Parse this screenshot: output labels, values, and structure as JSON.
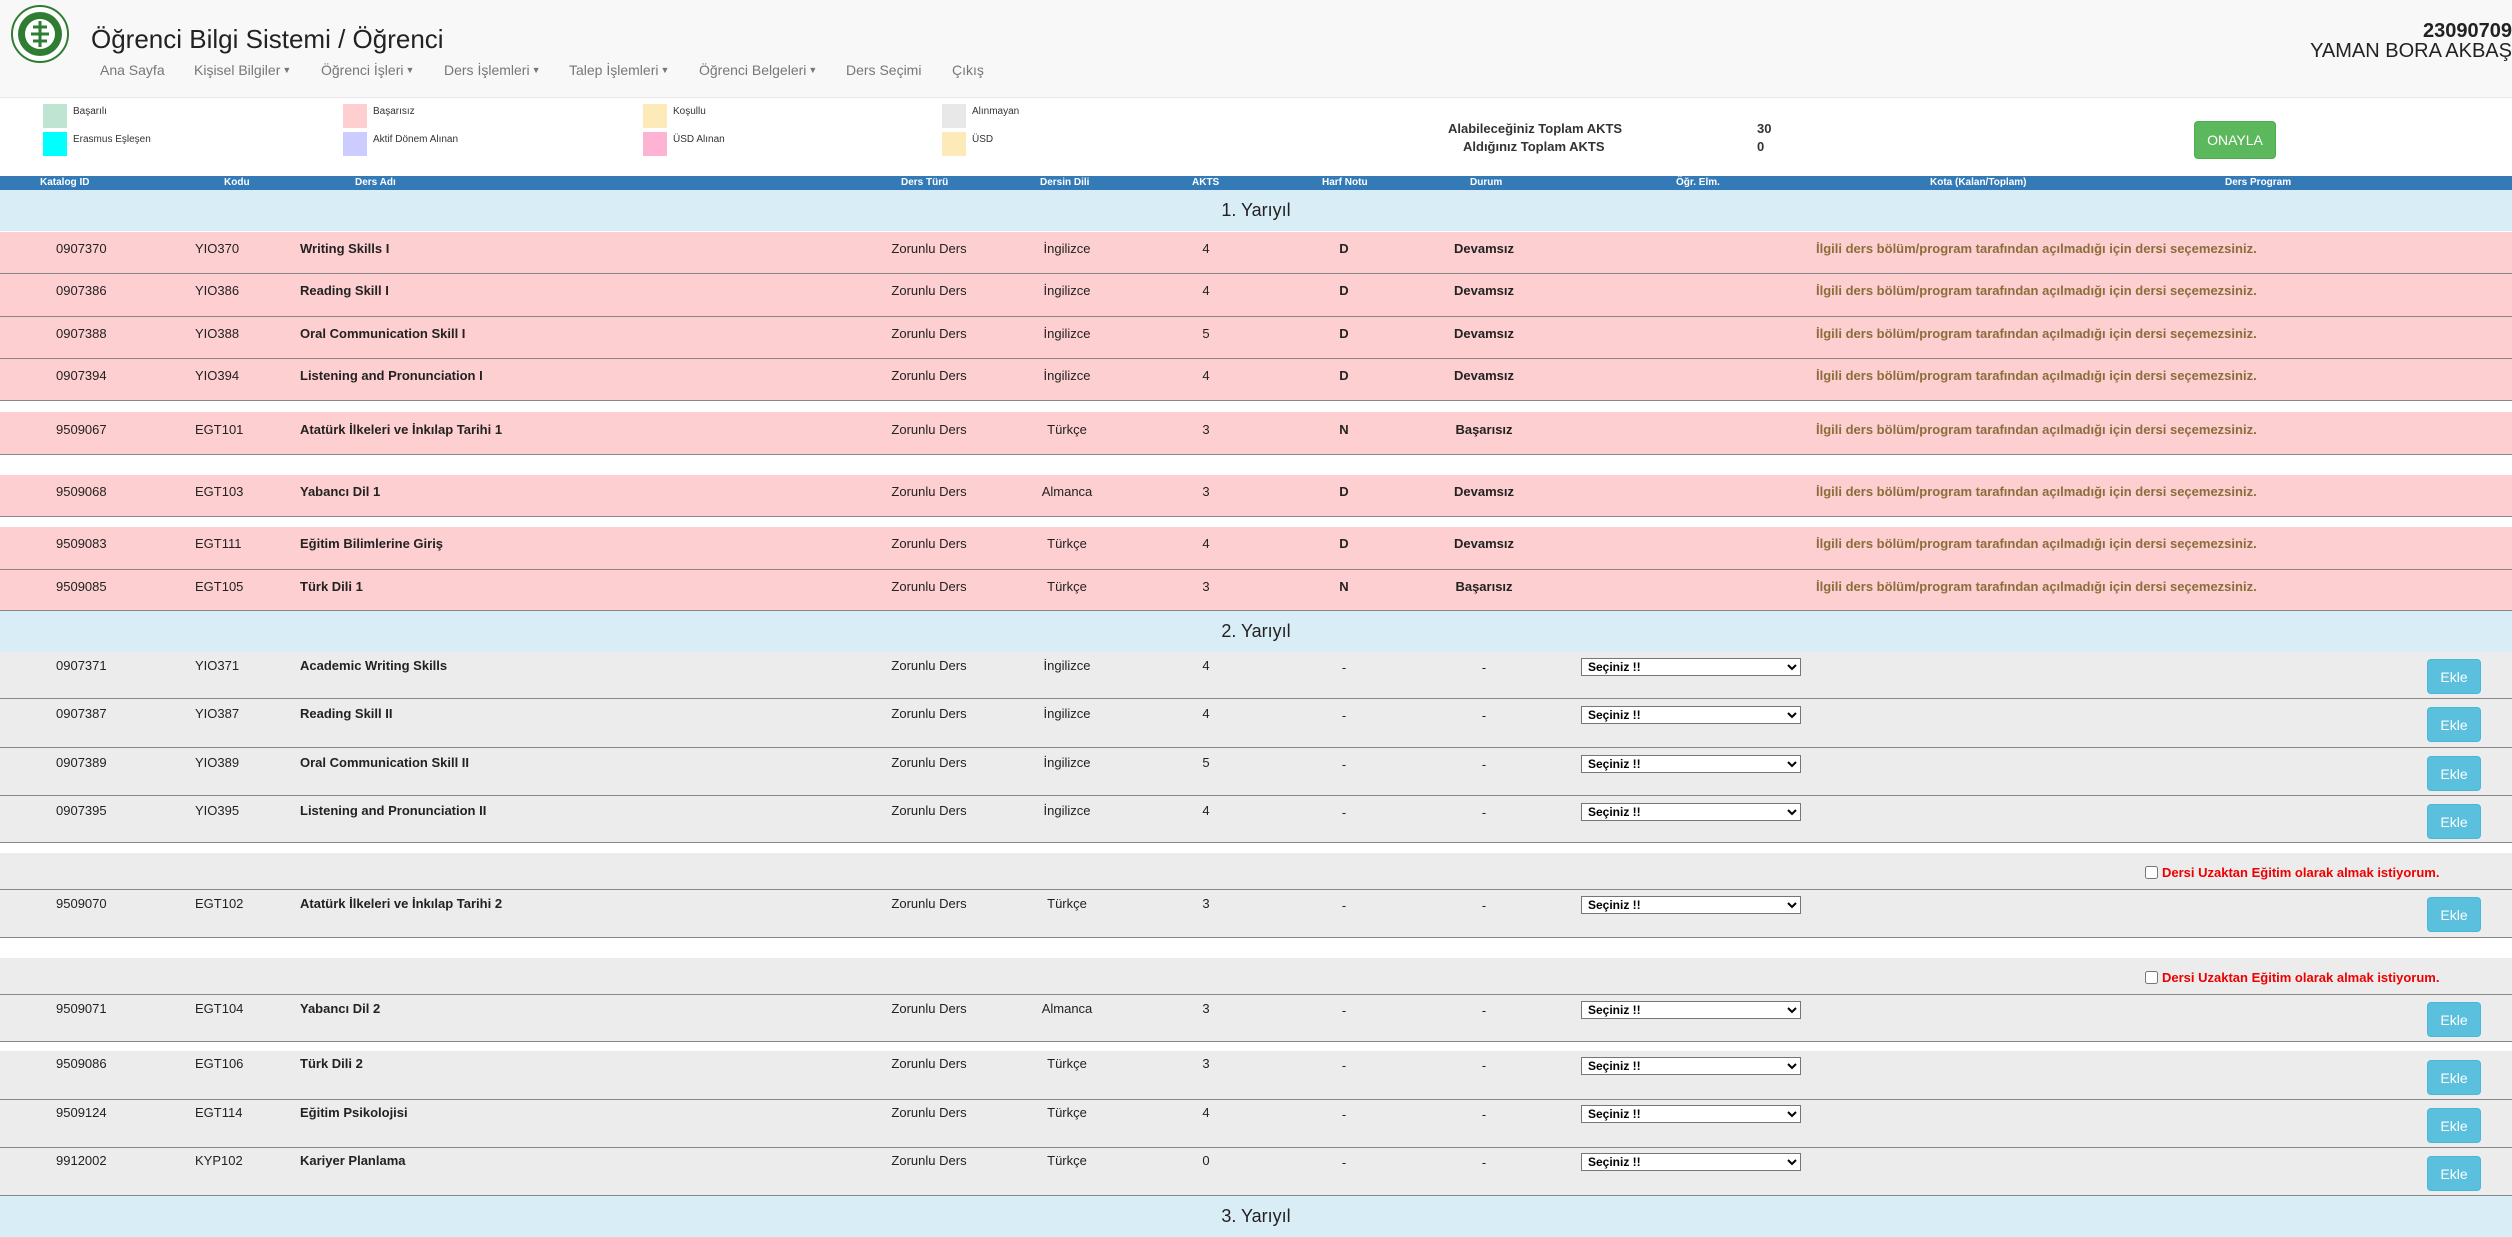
{
  "header": {
    "title": "Öğrenci Bilgi Sistemi / Öğrenci",
    "student_no": "23090709",
    "student_name": "YAMAN BORA AKBAŞ",
    "nav": [
      {
        "label": "Ana Sayfa",
        "dropdown": false
      },
      {
        "label": "Kişisel Bilgiler",
        "dropdown": true
      },
      {
        "label": "Öğrenci İşleri",
        "dropdown": true
      },
      {
        "label": "Ders İşlemleri",
        "dropdown": true
      },
      {
        "label": "Talep İşlemleri",
        "dropdown": true
      },
      {
        "label": "Öğrenci Belgeleri",
        "dropdown": true
      },
      {
        "label": "Ders Seçimi",
        "dropdown": false
      },
      {
        "label": "Çıkış",
        "dropdown": false
      }
    ]
  },
  "legend": [
    {
      "label": "Başarılı",
      "color": "#bfe4d2"
    },
    {
      "label": "Başarısız",
      "color": "#fecfd0"
    },
    {
      "label": "Koşullu",
      "color": "#fcebb8"
    },
    {
      "label": "Alınmayan",
      "color": "#e8e8e8"
    },
    {
      "label": "Erasmus Eşleşen",
      "color": "#00ffff"
    },
    {
      "label": "Aktif Dönem Alınan",
      "color": "#ccccff"
    },
    {
      "label": "ÜSD Alınan",
      "color": "#ffb3d4"
    },
    {
      "label": "ÜSD",
      "color": "#fcebb8"
    }
  ],
  "akts": {
    "max_label": "Alabileceğiniz Toplam AKTS",
    "max_value": "30",
    "taken_label": "Aldığınız Toplam AKTS",
    "taken_value": "0"
  },
  "approve_label": "ONAYLA",
  "columns": [
    "Katalog ID",
    "Kodu",
    "Ders Adı",
    "Ders Türü",
    "Dersin Dili",
    "AKTS",
    "Harf Notu",
    "Durum",
    "Öğr. Elm.",
    "Kota (Kalan/Toplam)",
    "Ders Program"
  ],
  "semesters": [
    "1. Yarıyıl",
    "2. Yarıyıl",
    "3. Yarıyıl"
  ],
  "fail_message": "İlgili ders bölüm/program tarafından açılmadığı için dersi seçemezsiniz.",
  "select_placeholder": "Seçiniz !!",
  "add_label": "Ekle",
  "distance_label": "Dersi Uzaktan Eğitim olarak almak istiyorum.",
  "semester1": [
    {
      "id": "0907370",
      "code": "YIO370",
      "name": "Writing Skills I",
      "type": "Zorunlu Ders",
      "lang": "İngilizce",
      "akts": "4",
      "grade": "D",
      "status": "Devamsız"
    },
    {
      "id": "0907386",
      "code": "YIO386",
      "name": "Reading Skill I",
      "type": "Zorunlu Ders",
      "lang": "İngilizce",
      "akts": "4",
      "grade": "D",
      "status": "Devamsız"
    },
    {
      "id": "0907388",
      "code": "YIO388",
      "name": "Oral Communication Skill I",
      "type": "Zorunlu Ders",
      "lang": "İngilizce",
      "akts": "5",
      "grade": "D",
      "status": "Devamsız"
    },
    {
      "id": "0907394",
      "code": "YIO394",
      "name": "Listening and Pronunciation I",
      "type": "Zorunlu Ders",
      "lang": "İngilizce",
      "akts": "4",
      "grade": "D",
      "status": "Devamsız"
    },
    {
      "id": "9509067",
      "code": "EGT101",
      "name": "Atatürk İlkeleri ve İnkılap Tarihi 1",
      "type": "Zorunlu Ders",
      "lang": "Türkçe",
      "akts": "3",
      "grade": "N",
      "status": "Başarısız"
    },
    {
      "id": "9509068",
      "code": "EGT103",
      "name": "Yabancı Dil 1",
      "type": "Zorunlu Ders",
      "lang": "Almanca",
      "akts": "3",
      "grade": "D",
      "status": "Devamsız"
    },
    {
      "id": "9509083",
      "code": "EGT111",
      "name": "Eğitim Bilimlerine Giriş",
      "type": "Zorunlu Ders",
      "lang": "Türkçe",
      "akts": "4",
      "grade": "D",
      "status": "Devamsız"
    },
    {
      "id": "9509085",
      "code": "EGT105",
      "name": "Türk Dili 1",
      "type": "Zorunlu Ders",
      "lang": "Türkçe",
      "akts": "3",
      "grade": "N",
      "status": "Başarısız"
    }
  ],
  "semester2": [
    {
      "id": "0907371",
      "code": "YIO371",
      "name": "Academic Writing Skills",
      "type": "Zorunlu Ders",
      "lang": "İngilizce",
      "akts": "4",
      "grade": "-",
      "status": "-"
    },
    {
      "id": "0907387",
      "code": "YIO387",
      "name": "Reading Skill II",
      "type": "Zorunlu Ders",
      "lang": "İngilizce",
      "akts": "4",
      "grade": "-",
      "status": "-"
    },
    {
      "id": "0907389",
      "code": "YIO389",
      "name": "Oral Communication Skill II",
      "type": "Zorunlu Ders",
      "lang": "İngilizce",
      "akts": "5",
      "grade": "-",
      "status": "-"
    },
    {
      "id": "0907395",
      "code": "YIO395",
      "name": "Listening and Pronunciation II",
      "type": "Zorunlu Ders",
      "lang": "İngilizce",
      "akts": "4",
      "grade": "-",
      "status": "-"
    },
    {
      "id": "9509070",
      "code": "EGT102",
      "name": "Atatürk İlkeleri ve İnkılap Tarihi 2",
      "type": "Zorunlu Ders",
      "lang": "Türkçe",
      "akts": "3",
      "grade": "-",
      "status": "-"
    },
    {
      "id": "9509071",
      "code": "EGT104",
      "name": "Yabancı Dil 2",
      "type": "Zorunlu Ders",
      "lang": "Almanca",
      "akts": "3",
      "grade": "-",
      "status": "-"
    },
    {
      "id": "9509086",
      "code": "EGT106",
      "name": "Türk Dili 2",
      "type": "Zorunlu Ders",
      "lang": "Türkçe",
      "akts": "3",
      "grade": "-",
      "status": "-"
    },
    {
      "id": "9509124",
      "code": "EGT114",
      "name": "Eğitim Psikolojisi",
      "type": "Zorunlu Ders",
      "lang": "Türkçe",
      "akts": "4",
      "grade": "-",
      "status": "-"
    },
    {
      "id": "9912002",
      "code": "KYP102",
      "name": "Kariyer Planlama",
      "type": "Zorunlu Ders",
      "lang": "Türkçe",
      "akts": "0",
      "grade": "-",
      "status": "-"
    }
  ]
}
